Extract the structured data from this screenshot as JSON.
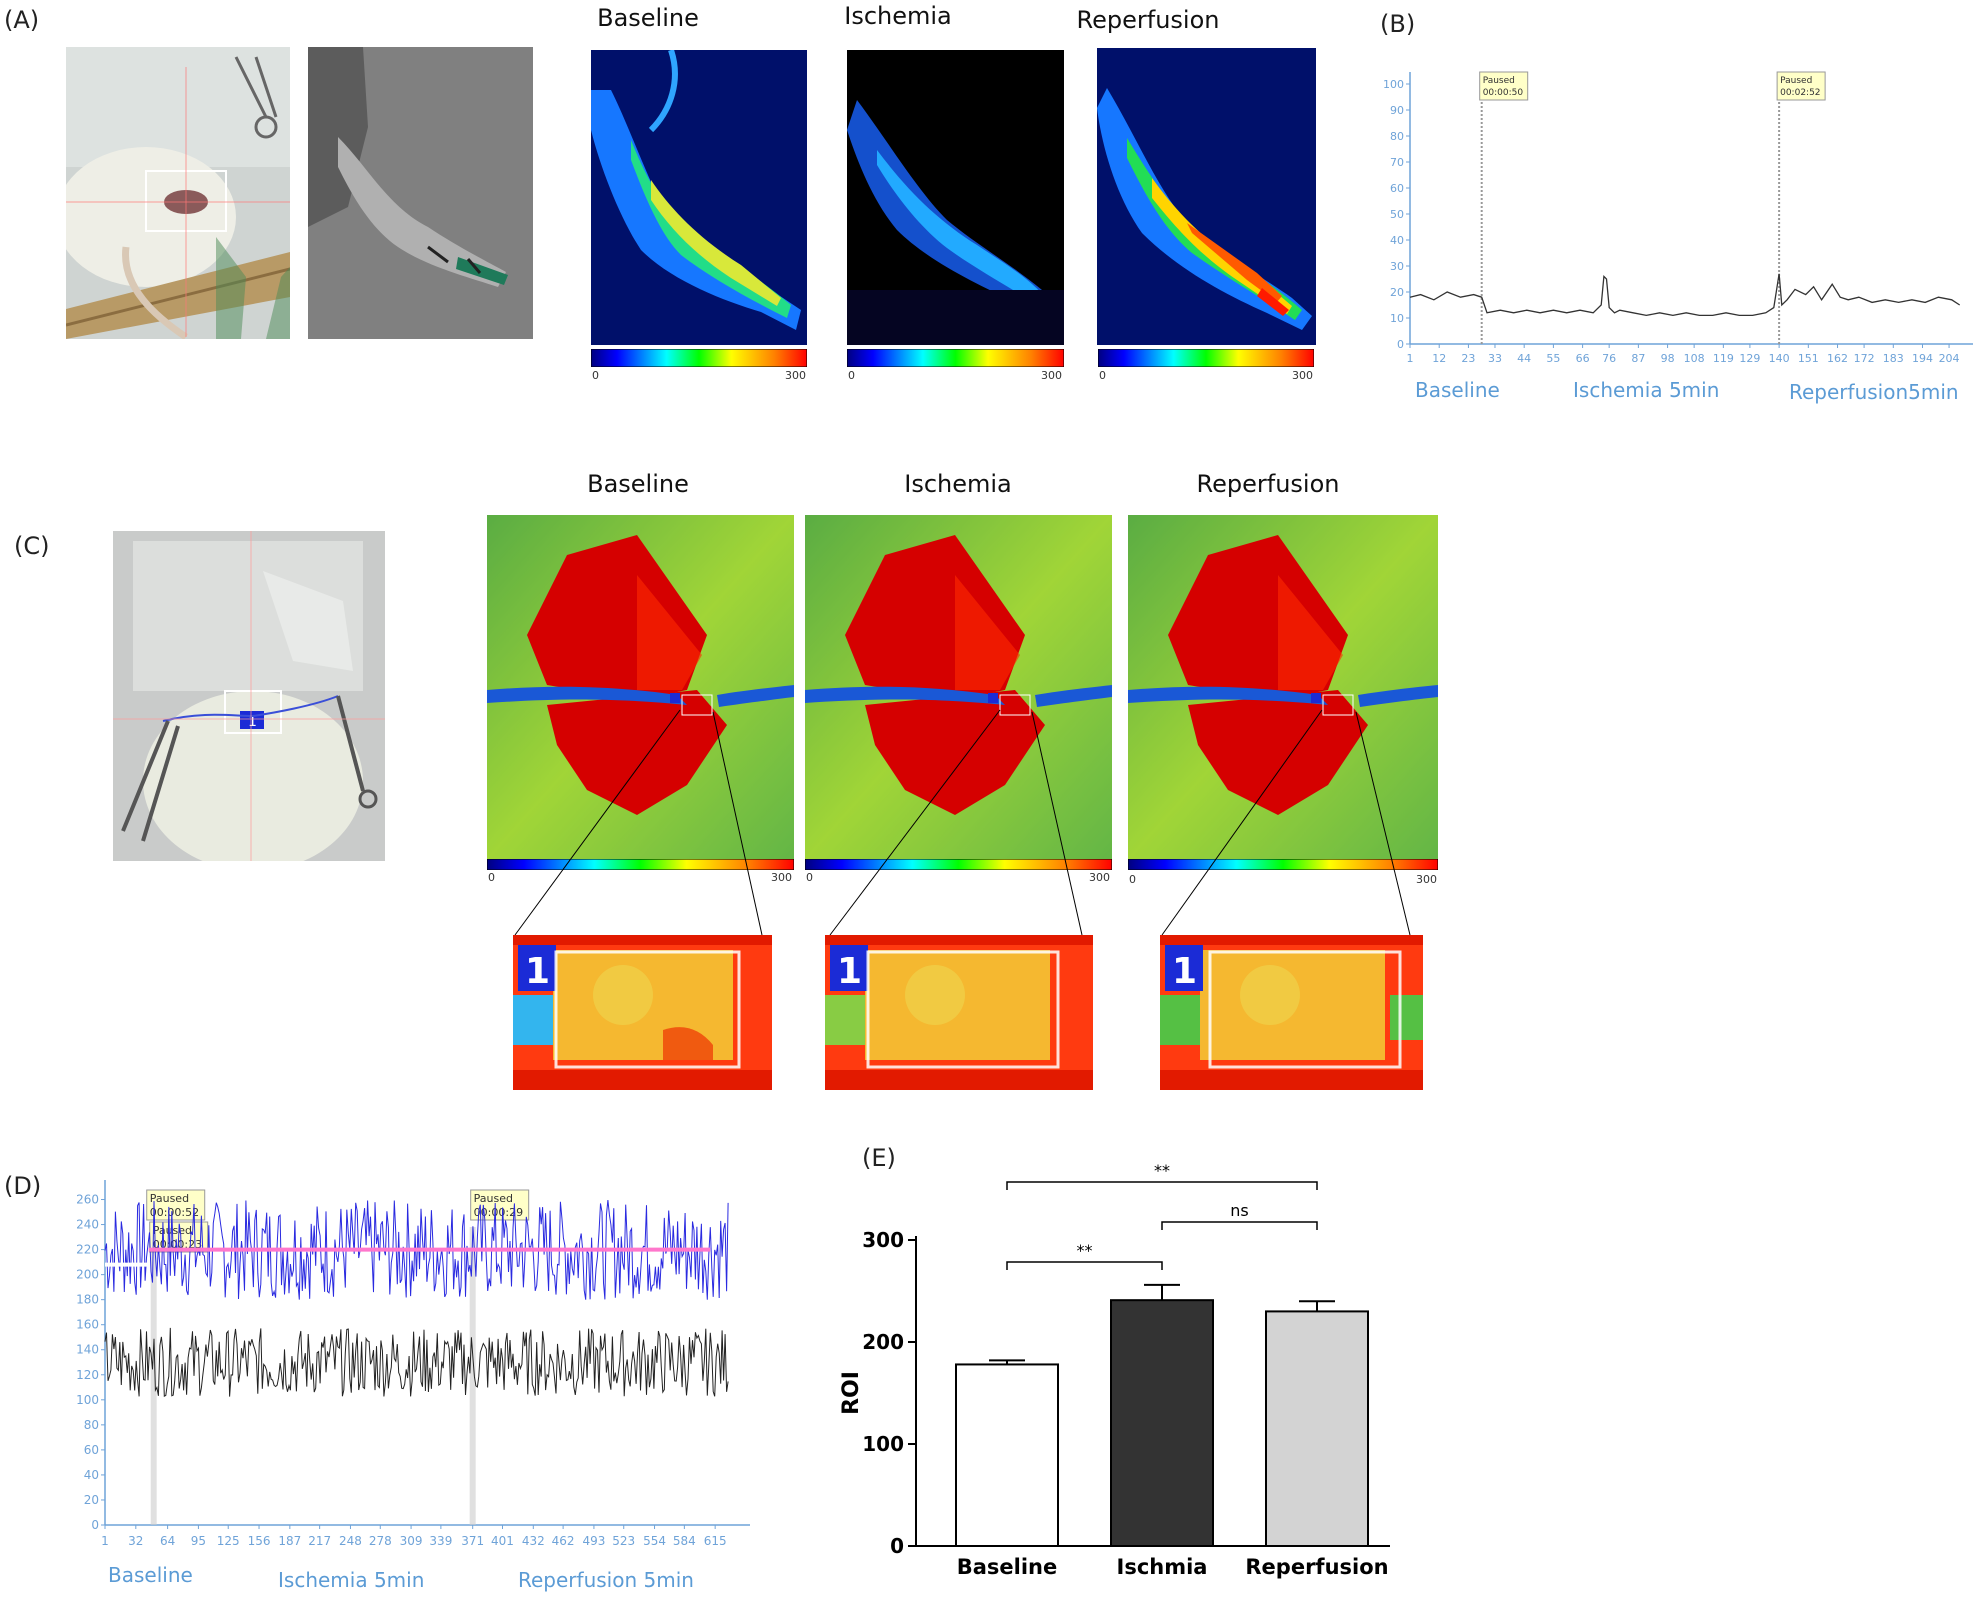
{
  "panel_letters": {
    "a": "(A)",
    "b": "(B)",
    "c": "(C)",
    "d": "(D)",
    "e": "(E)"
  },
  "conditions": [
    "Baseline",
    "Ischemia",
    "Reperfusion"
  ],
  "colorbar": {
    "min": "0",
    "max": "300"
  },
  "zoom_roi_label": "1",
  "chart_b": {
    "yticks": [
      "0",
      "10",
      "20",
      "30",
      "40",
      "50",
      "60",
      "70",
      "80",
      "90",
      "100"
    ],
    "xticks": [
      "1",
      "12",
      "23",
      "33",
      "44",
      "55",
      "66",
      "76",
      "87",
      "98",
      "108",
      "119",
      "129",
      "140",
      "151",
      "162",
      "172",
      "183",
      "194",
      "204"
    ],
    "markers": [
      {
        "line1": "Paused",
        "line2": "00:00:50"
      },
      {
        "line1": "Paused",
        "line2": "00:02:52"
      }
    ],
    "phases": [
      "Baseline",
      "Ischemia  5min",
      "Reperfusion5min"
    ]
  },
  "chart_d": {
    "yticks": [
      "0",
      "20",
      "40",
      "60",
      "80",
      "100",
      "120",
      "140",
      "160",
      "180",
      "200",
      "220",
      "240",
      "260"
    ],
    "xticks": [
      "1",
      "32",
      "64",
      "95",
      "125",
      "156",
      "187",
      "217",
      "248",
      "278",
      "309",
      "339",
      "371",
      "401",
      "432",
      "462",
      "493",
      "523",
      "554",
      "584",
      "615"
    ],
    "markers": [
      {
        "line1": "Paused",
        "line2": "00:00:52"
      },
      {
        "line1": "Paused",
        "line2": "00:00:23"
      },
      {
        "line1": "Paused",
        "line2": "00:00:29"
      }
    ],
    "phases": [
      "Baseline",
      "Ischemia  5min",
      "Reperfusion  5min"
    ]
  },
  "chart_data": [
    {
      "type": "line",
      "panel": "(B)",
      "ylim": [
        0,
        100
      ],
      "xlim": [
        1,
        210
      ],
      "series": [
        {
          "x": [
            1,
            5,
            10,
            15,
            20,
            25,
            28,
            30,
            35,
            40,
            45,
            50,
            55,
            60,
            65,
            70,
            73,
            74,
            75,
            76,
            78,
            80,
            85,
            90,
            95,
            100,
            105,
            110,
            115,
            120,
            125,
            130,
            135,
            138,
            140,
            141,
            143,
            146,
            150,
            153,
            156,
            160,
            163,
            166,
            170,
            175,
            180,
            185,
            190,
            195,
            200,
            205,
            208
          ],
          "y": [
            18,
            19,
            17,
            20,
            18,
            19,
            18,
            12,
            13,
            12,
            13,
            12,
            13,
            12,
            13,
            12,
            15,
            26,
            25,
            14,
            12,
            13,
            12,
            11,
            12,
            11,
            12,
            11,
            11,
            12,
            11,
            11,
            12,
            14,
            27,
            15,
            17,
            21,
            19,
            22,
            17,
            23,
            18,
            17,
            18,
            16,
            17,
            16,
            17,
            16,
            18,
            17,
            15
          ]
        }
      ]
    },
    {
      "type": "line",
      "panel": "(D)",
      "ylim": [
        0,
        270
      ],
      "xlim": [
        1,
        640
      ],
      "series": [
        {
          "name": "",
          "range": [
            180,
            260
          ],
          "mean": 220
        },
        {
          "name": "",
          "range": [
            105,
            160
          ],
          "mean": 130
        }
      ]
    },
    {
      "type": "bar",
      "panel": "(E)",
      "categories": [
        "Baseline",
        "Ischmia",
        "Reperfusion"
      ],
      "values": [
        178,
        241,
        230
      ],
      "errors": [
        4,
        15,
        10
      ],
      "colors": [
        "#ffffff",
        "#333333",
        "#d3d3d3"
      ],
      "ylabel": "ROI",
      "ylim": [
        0,
        300
      ],
      "yticks": [
        "0",
        "100",
        "200",
        "300"
      ],
      "significance": [
        {
          "from": "Baseline",
          "to": "Reperfusion",
          "label": "**"
        },
        {
          "from": "Ischmia",
          "to": "Reperfusion",
          "label": "ns"
        },
        {
          "from": "Baseline",
          "to": "Ischmia",
          "label": "**"
        }
      ]
    }
  ]
}
